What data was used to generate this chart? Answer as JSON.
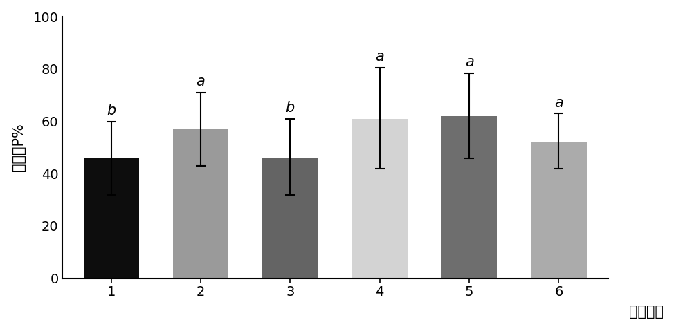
{
  "categories": [
    "1",
    "2",
    "3",
    "4",
    "5",
    "6"
  ],
  "values": [
    46.0,
    57.0,
    46.0,
    61.0,
    62.0,
    52.0
  ],
  "error_upper": [
    14.0,
    14.0,
    15.0,
    19.5,
    16.5,
    11.0
  ],
  "error_lower": [
    14.0,
    14.0,
    14.0,
    19.0,
    16.0,
    10.0
  ],
  "bar_colors": [
    "#0d0d0d",
    "#9a9a9a",
    "#646464",
    "#d3d3d3",
    "#6e6e6e",
    "#ababab"
  ],
  "sig_labels": [
    "b",
    "a",
    "b",
    "a",
    "a",
    "a"
  ],
  "ylabel": "萌发率P%",
  "xlabel": "处理组别",
  "ylim": [
    0,
    100
  ],
  "yticks": [
    0,
    20,
    40,
    60,
    80,
    100
  ],
  "background_color": "#ffffff",
  "bar_width": 0.62,
  "sig_fontsize": 15,
  "axis_fontsize": 15,
  "tick_fontsize": 14
}
